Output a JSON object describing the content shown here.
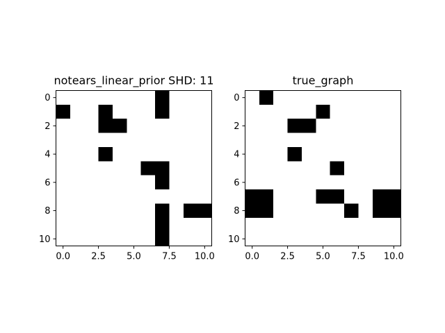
{
  "chart_data": [
    {
      "type": "heatmap",
      "title": "notears_linear_prior SHD: 11",
      "xlabel": "",
      "ylabel": "",
      "xlim": [
        -0.5,
        10.5
      ],
      "ylim": [
        10.5,
        -0.5
      ],
      "xticks": [
        "0.0",
        "2.5",
        "5.0",
        "7.5",
        "10.0"
      ],
      "yticks": [
        "0",
        "2",
        "4",
        "6",
        "8",
        "10"
      ],
      "colormap": {
        "zero": "#ffffff",
        "one": "#000000"
      },
      "grid": false,
      "matrix": [
        [
          0,
          0,
          0,
          0,
          0,
          0,
          0,
          1,
          0,
          0,
          0
        ],
        [
          1,
          0,
          0,
          1,
          0,
          0,
          0,
          1,
          0,
          0,
          0
        ],
        [
          0,
          0,
          0,
          1,
          1,
          0,
          0,
          0,
          0,
          0,
          0
        ],
        [
          0,
          0,
          0,
          0,
          0,
          0,
          0,
          0,
          0,
          0,
          0
        ],
        [
          0,
          0,
          0,
          1,
          0,
          0,
          0,
          0,
          0,
          0,
          0
        ],
        [
          0,
          0,
          0,
          0,
          0,
          0,
          1,
          1,
          0,
          0,
          0
        ],
        [
          0,
          0,
          0,
          0,
          0,
          0,
          0,
          1,
          0,
          0,
          0
        ],
        [
          0,
          0,
          0,
          0,
          0,
          0,
          0,
          0,
          0,
          0,
          0
        ],
        [
          0,
          0,
          0,
          0,
          0,
          0,
          0,
          1,
          0,
          1,
          1
        ],
        [
          0,
          0,
          0,
          0,
          0,
          0,
          0,
          1,
          0,
          0,
          0
        ],
        [
          0,
          0,
          0,
          0,
          0,
          0,
          0,
          1,
          0,
          0,
          0
        ]
      ]
    },
    {
      "type": "heatmap",
      "title": "true_graph",
      "xlabel": "",
      "ylabel": "",
      "xlim": [
        -0.5,
        10.5
      ],
      "ylim": [
        10.5,
        -0.5
      ],
      "xticks": [
        "0.0",
        "2.5",
        "5.0",
        "7.5",
        "10.0"
      ],
      "yticks": [
        "0",
        "2",
        "4",
        "6",
        "8",
        "10"
      ],
      "colormap": {
        "zero": "#ffffff",
        "one": "#000000"
      },
      "grid": false,
      "matrix": [
        [
          0,
          1,
          0,
          0,
          0,
          0,
          0,
          0,
          0,
          0,
          0
        ],
        [
          0,
          0,
          0,
          0,
          0,
          1,
          0,
          0,
          0,
          0,
          0
        ],
        [
          0,
          0,
          0,
          1,
          1,
          0,
          0,
          0,
          0,
          0,
          0
        ],
        [
          0,
          0,
          0,
          0,
          0,
          0,
          0,
          0,
          0,
          0,
          0
        ],
        [
          0,
          0,
          0,
          1,
          0,
          0,
          0,
          0,
          0,
          0,
          0
        ],
        [
          0,
          0,
          0,
          0,
          0,
          0,
          1,
          0,
          0,
          0,
          0
        ],
        [
          0,
          0,
          0,
          0,
          0,
          0,
          0,
          0,
          0,
          0,
          0
        ],
        [
          1,
          1,
          0,
          0,
          0,
          1,
          1,
          0,
          0,
          1,
          1
        ],
        [
          1,
          1,
          0,
          0,
          0,
          0,
          0,
          1,
          0,
          1,
          1
        ],
        [
          0,
          0,
          0,
          0,
          0,
          0,
          0,
          0,
          0,
          0,
          0
        ],
        [
          0,
          0,
          0,
          0,
          0,
          0,
          0,
          0,
          0,
          0,
          0
        ]
      ]
    }
  ]
}
